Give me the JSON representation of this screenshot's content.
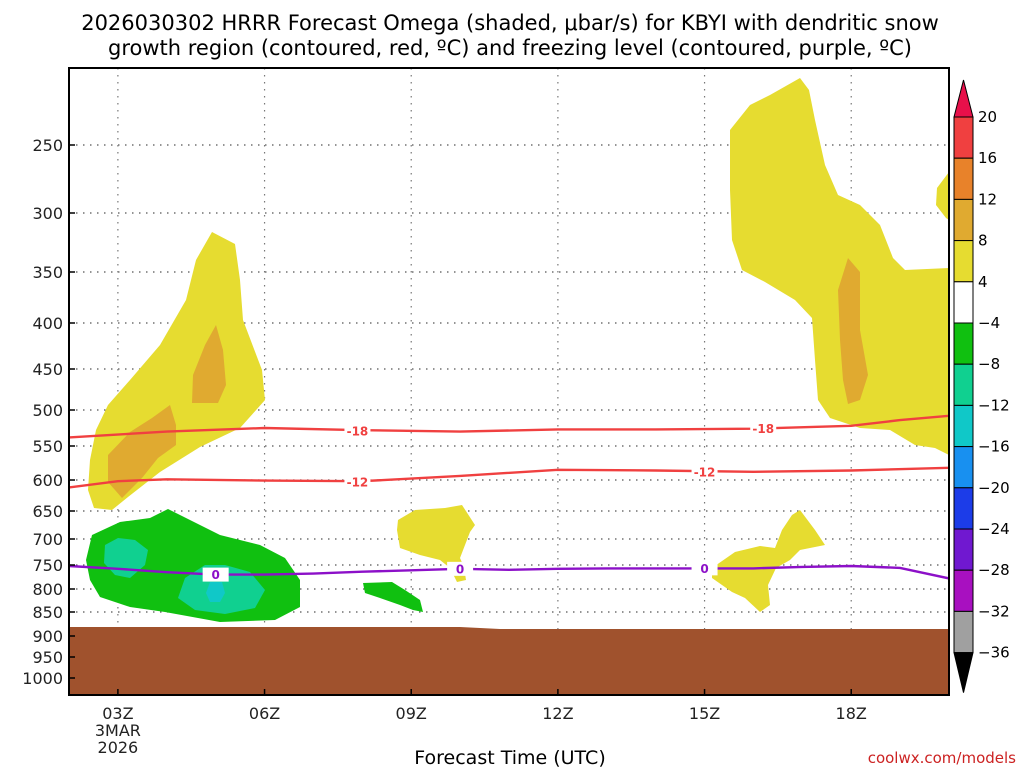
{
  "chart_data": {
    "type": "heatmap",
    "title_line1": "2026030302 HRRR Forecast Omega (shaded, μbar/s) for KBYI with dendritic snow",
    "title_line2": "growth region (contoured, red, ºC) and freezing level (contoured, purple, ºC)",
    "xlabel": "Forecast Time (UTC)",
    "x_ticks": [
      {
        "hour": 3,
        "label": "03Z",
        "sub1": "3MAR",
        "sub2": "2026"
      },
      {
        "hour": 6,
        "label": "06Z"
      },
      {
        "hour": 9,
        "label": "09Z"
      },
      {
        "hour": 12,
        "label": "12Z"
      },
      {
        "hour": 15,
        "label": "15Z"
      },
      {
        "hour": 18,
        "label": "18Z"
      }
    ],
    "xlim_hours": [
      2,
      20
    ],
    "y_ticks": [
      250,
      300,
      350,
      400,
      450,
      500,
      550,
      600,
      650,
      700,
      750,
      800,
      850,
      900,
      950,
      1000
    ],
    "ylim_hPa": [
      200,
      1040
    ],
    "credit": "coolwx.com/models",
    "colorbar": {
      "labels": [
        "20",
        "16",
        "12",
        "8",
        "4",
        "−4",
        "−8",
        "−12",
        "−16",
        "−20",
        "−24",
        "−28",
        "−32",
        "−36"
      ],
      "colors": [
        "#e8104a",
        "#f04040",
        "#e8822a",
        "#e0aa30",
        "#e6dc30",
        "#ffffff",
        "#10c010",
        "#10d090",
        "#10c8c8",
        "#1890f0",
        "#1c3ce8",
        "#7018d0",
        "#a810c0",
        "#a0a0a0",
        "#000000"
      ]
    },
    "contours": [
      {
        "name": "-18",
        "color": "#f04040",
        "points": [
          [
            2,
            538
          ],
          [
            4,
            530
          ],
          [
            6,
            525
          ],
          [
            8,
            528
          ],
          [
            10,
            530
          ],
          [
            12,
            527
          ],
          [
            14,
            527
          ],
          [
            16,
            526
          ],
          [
            18,
            522
          ],
          [
            19,
            514
          ],
          [
            20,
            508
          ]
        ],
        "label_at": [
          [
            7.9,
            529
          ],
          [
            16.2,
            526
          ]
        ]
      },
      {
        "name": "-12",
        "color": "#f04040",
        "points": [
          [
            2,
            612
          ],
          [
            3,
            602
          ],
          [
            4,
            599
          ],
          [
            6,
            601
          ],
          [
            8,
            602
          ],
          [
            10,
            594
          ],
          [
            12,
            585
          ],
          [
            14,
            586
          ],
          [
            16,
            588
          ],
          [
            18,
            586
          ],
          [
            20,
            582
          ]
        ],
        "label_at": [
          [
            7.9,
            603
          ],
          [
            15.0,
            588
          ]
        ]
      },
      {
        "name": "0",
        "color": "#8c10c8",
        "points": [
          [
            2,
            752
          ],
          [
            3,
            758
          ],
          [
            4,
            765
          ],
          [
            5,
            770
          ],
          [
            6,
            770
          ],
          [
            7,
            768
          ],
          [
            8,
            764
          ],
          [
            9,
            761
          ],
          [
            10,
            758
          ],
          [
            11,
            760
          ],
          [
            12,
            758
          ],
          [
            13,
            757
          ],
          [
            14,
            757
          ],
          [
            15,
            757
          ],
          [
            16,
            757
          ],
          [
            17,
            754
          ],
          [
            18,
            752
          ],
          [
            19,
            756
          ],
          [
            20,
            778
          ]
        ],
        "label_at": [
          [
            5.0,
            770
          ],
          [
            10.0,
            758
          ],
          [
            15.0,
            757
          ]
        ]
      }
    ],
    "ground_top_hPa": 875
  }
}
